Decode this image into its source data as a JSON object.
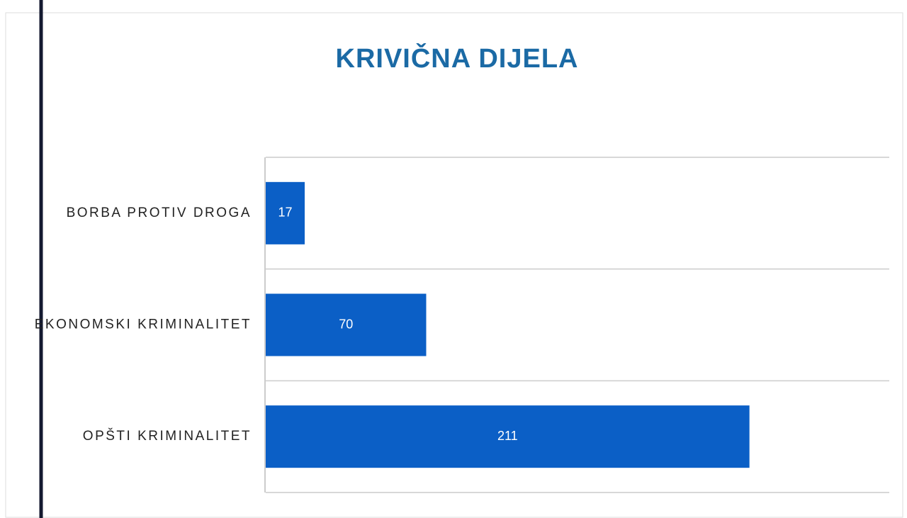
{
  "chart_data": {
    "type": "bar",
    "orientation": "horizontal",
    "title": "KRIVIČNA DIJELA",
    "categories": [
      "BORBA PROTIV DROGA",
      "EKONOMSKI KRIMINALITET",
      "OPŠTI KRIMINALITET"
    ],
    "values": [
      17,
      70,
      211
    ],
    "color": "#0b5fc6",
    "xlim": [
      0,
      272
    ]
  }
}
